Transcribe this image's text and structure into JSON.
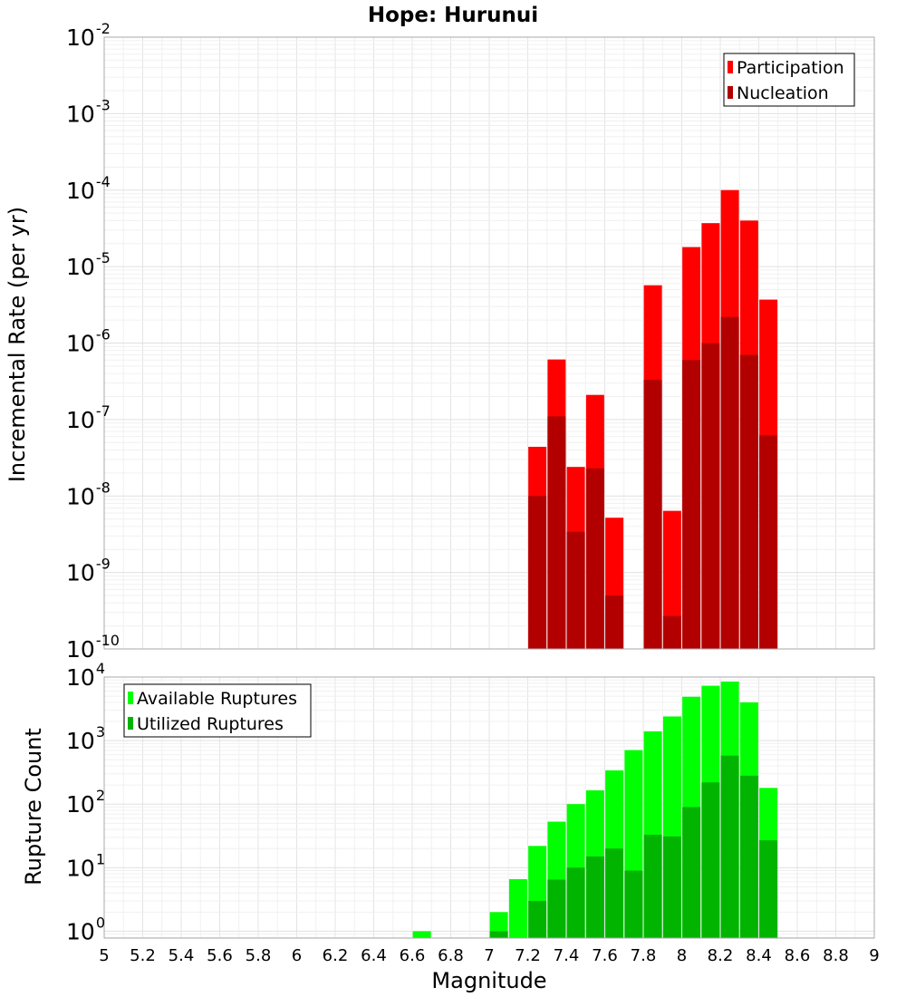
{
  "chart_data": {
    "title": "Hope: Hurunui",
    "xlabel": "Magnitude",
    "xlim": [
      5,
      9
    ],
    "x_ticks": [
      "5",
      "5.2",
      "5.4",
      "5.6",
      "5.8",
      "6",
      "6.2",
      "6.4",
      "6.6",
      "6.8",
      "7",
      "7.2",
      "7.4",
      "7.6",
      "7.8",
      "8",
      "8.2",
      "8.4",
      "8.6",
      "8.8",
      "9"
    ],
    "grid": true,
    "panels": [
      {
        "type": "bar",
        "scale": "log",
        "ylabel": "Incremental Rate (per yr)",
        "ylim": [
          1e-10,
          0.01
        ],
        "y_tick_exponents": [
          "-10",
          "-9",
          "-8",
          "-7",
          "-6",
          "-5",
          "-4",
          "-3",
          "-2"
        ],
        "legend_position": "top-right",
        "legend": [
          "Participation",
          "Nucleation"
        ],
        "series": [
          {
            "name": "Participation",
            "color": "#ff0000",
            "x": [
              7.25,
              7.35,
              7.45,
              7.55,
              7.65,
              7.85,
              7.95,
              8.05,
              8.15,
              8.25,
              8.35,
              8.45
            ],
            "values": [
              4.4e-08,
              6.1e-07,
              2.4e-08,
              2.1e-07,
              5.2e-09,
              5.7e-06,
              6.4e-09,
              1.8e-05,
              3.7e-05,
              0.0001,
              4e-05,
              3.7e-06
            ]
          },
          {
            "name": "Nucleation",
            "color": "#b20000",
            "x": [
              7.25,
              7.35,
              7.45,
              7.55,
              7.65,
              7.85,
              7.95,
              8.05,
              8.15,
              8.25,
              8.35,
              8.45
            ],
            "values": [
              1e-08,
              1.1e-07,
              3.4e-09,
              2.3e-08,
              5e-10,
              3.3e-07,
              2.7e-10,
              6e-07,
              1e-06,
              2.2e-06,
              7e-07,
              6.2e-08
            ]
          }
        ]
      },
      {
        "type": "bar",
        "scale": "log",
        "ylabel": "Rupture Count",
        "ylim": [
          0.78,
          10000
        ],
        "y_tick_exponents": [
          "0",
          "1",
          "2",
          "3",
          "4"
        ],
        "legend_position": "top-left",
        "legend": [
          "Available Ruptures",
          "Utilized Ruptures"
        ],
        "series": [
          {
            "name": "Available Ruptures",
            "color": "#00ff00",
            "x": [
              6.65,
              7.05,
              7.15,
              7.25,
              7.35,
              7.45,
              7.55,
              7.65,
              7.75,
              7.85,
              7.95,
              8.05,
              8.15,
              8.25,
              8.35,
              8.45
            ],
            "values": [
              1,
              2,
              6.6,
              22,
              53,
              100,
              165,
              340,
              710,
              1400,
              2400,
              4900,
              7300,
              8500,
              4000,
              180
            ]
          },
          {
            "name": "Utilized Ruptures",
            "color": "#00b400",
            "x": [
              7.05,
              7.25,
              7.35,
              7.45,
              7.55,
              7.65,
              7.75,
              7.85,
              7.95,
              8.05,
              8.15,
              8.25,
              8.35,
              8.45
            ],
            "values": [
              1,
              3,
              6.5,
              10,
              15,
              20,
              9,
              33,
              31,
              90,
              220,
              580,
              280,
              27
            ]
          }
        ]
      }
    ]
  }
}
